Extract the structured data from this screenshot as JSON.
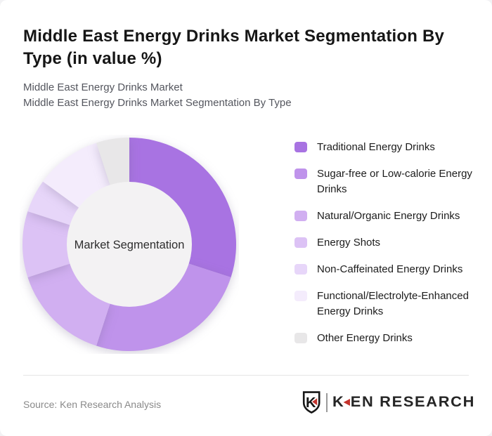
{
  "header": {
    "title": "Middle East Energy Drinks Market Segmentation By Type (in value %)",
    "subtitle_line1": "Middle East Energy Drinks Market",
    "subtitle_line2": "Middle East Energy Drinks Market Segmentation By Type"
  },
  "chart_data": {
    "type": "pie",
    "variant": "donut",
    "title": "Middle East Energy Drinks Market Segmentation By Type (in value %)",
    "unit": "value %",
    "center_label": "Market Segmentation",
    "start_angle_deg": 0,
    "direction": "clockwise",
    "legend_position": "right",
    "inner_circle_color": "#f3f2f3",
    "segments": [
      {
        "label": "Traditional Energy Drinks",
        "value": 30,
        "color": "#a873e2"
      },
      {
        "label": "Sugar-free or Low-calorie Energy Drinks",
        "value": 25,
        "color": "#bf93eb"
      },
      {
        "label": "Natural/Organic Energy Drinks",
        "value": 15,
        "color": "#d1aff1"
      },
      {
        "label": "Energy Shots",
        "value": 10,
        "color": "#dcc2f5"
      },
      {
        "label": "Non-Caffeinated Energy Drinks",
        "value": 5,
        "color": "#e7d6f9"
      },
      {
        "label": "Functional/Electrolyte-Enhanced Energy Drinks",
        "value": 10,
        "color": "#f4ecfc"
      },
      {
        "label": "Other Energy Drinks",
        "value": 5,
        "color": "#e8e7e8"
      }
    ]
  },
  "footer": {
    "source": "Source: Ken Research Analysis",
    "logo": {
      "badge_letter": "K",
      "text_first_letter": "K",
      "text_rest": "EN RESEARCH"
    }
  },
  "colors": {
    "accent_red": "#c4342d",
    "title_text": "#161616",
    "subtitle_text": "#54565e",
    "source_text": "#8a8a8a"
  }
}
